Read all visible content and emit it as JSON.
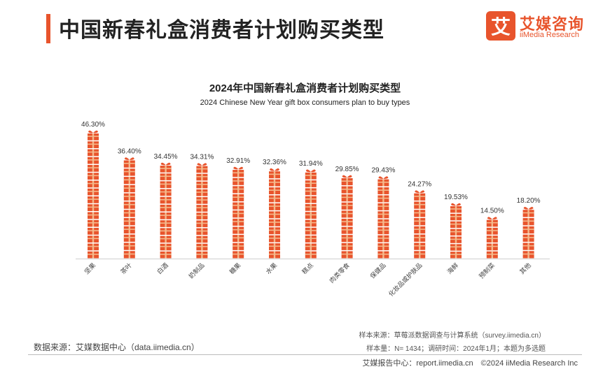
{
  "header": {
    "title": "中国新春礼盒消费者计划购买类型"
  },
  "logo": {
    "mark": "艾",
    "cn": "艾媒咨询",
    "en": "iiMedia Research"
  },
  "chart_data": {
    "type": "bar",
    "title": "2024年中国新春礼盒消费者计划购买类型",
    "subtitle": "2024 Chinese New Year gift box consumers plan to buy types",
    "categories": [
      "坚果",
      "茶叶",
      "白酒",
      "奶制品",
      "糖果",
      "水果",
      "糕点",
      "肉类零食",
      "保健品",
      "化妆品或护肤品",
      "海鲜",
      "预制菜",
      "其他"
    ],
    "values": [
      46.3,
      36.4,
      34.45,
      34.31,
      32.91,
      32.36,
      31.94,
      29.85,
      29.43,
      24.27,
      19.53,
      14.5,
      18.2
    ],
    "value_labels": [
      "46.30%",
      "36.40%",
      "34.45%",
      "34.31%",
      "32.91%",
      "32.36%",
      "31.94%",
      "29.85%",
      "29.43%",
      "24.27%",
      "19.53%",
      "14.50%",
      "18.20%"
    ],
    "ylim": [
      0,
      50
    ],
    "grid": false,
    "bar_style": "stacked gift-box icons",
    "colors": {
      "bar": "#e8542c",
      "ribbon": "#f4b98c"
    }
  },
  "footer": {
    "source": "数据来源：艾媒数据中心（data.iimedia.cn）",
    "note1": "样本来源：草莓派数据调查与计算系统（survey.iimedia.cn）",
    "note2": "样本量：N= 1434；调研时间：2024年1月；本题为多选题",
    "right": "艾媒报告中心：report.iimedia.cn　©2024  iiMedia Research  Inc"
  }
}
